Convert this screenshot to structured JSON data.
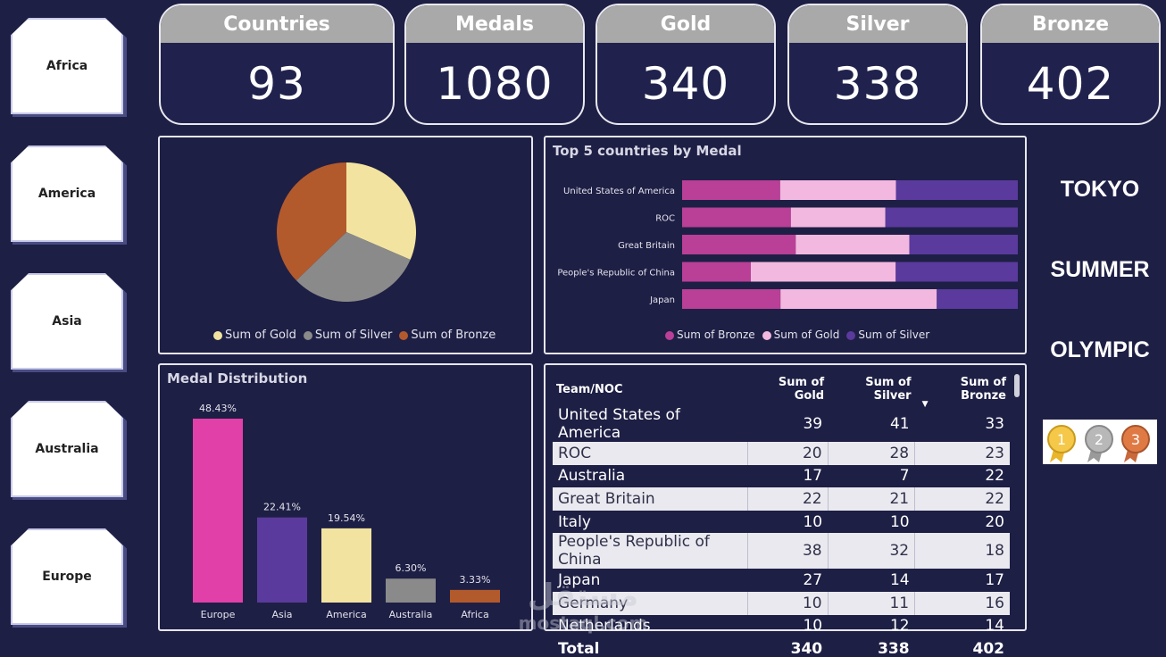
{
  "regions": [
    "Africa",
    "America",
    "Asia",
    "Australia",
    "Europe"
  ],
  "kpis": [
    {
      "label": "Countries",
      "value": "93"
    },
    {
      "label": "Medals",
      "value": "1080"
    },
    {
      "label": "Gold",
      "value": "340"
    },
    {
      "label": "Silver",
      "value": "338"
    },
    {
      "label": "Bronze",
      "value": "402"
    }
  ],
  "pie": {
    "legend": [
      "Sum of Gold",
      "Sum of Silver",
      "Sum of Bronze"
    ],
    "colors": [
      "#f2e4a0",
      "#8a8a8a",
      "#b35a2d"
    ],
    "values": [
      340,
      338,
      402
    ]
  },
  "top5": {
    "title": "Top 5 countries by Medal",
    "legend": [
      "Sum of Bronze",
      "Sum of Gold",
      "Sum of Silver"
    ],
    "colors": [
      "#b93f97",
      "#f3b8e0",
      "#5a3a9c"
    ],
    "countries": [
      "United States of America",
      "ROC",
      "Great Britain",
      "People's Republic of China",
      "Japan"
    ],
    "bronze": [
      33,
      23,
      22,
      18,
      17
    ],
    "gold": [
      39,
      20,
      22,
      38,
      27
    ],
    "silver": [
      41,
      28,
      21,
      32,
      14
    ]
  },
  "distribution": {
    "title": "Medal Distribution",
    "categories": [
      "Europe",
      "Asia",
      "America",
      "Australia",
      "Africa"
    ],
    "values": [
      48.43,
      22.41,
      19.54,
      6.3,
      3.33
    ],
    "labels": [
      "48.43%",
      "22.41%",
      "19.54%",
      "6.30%",
      "3.33%"
    ],
    "colors": [
      "#e040a8",
      "#5a3a9c",
      "#f2e4a0",
      "#8a8a8a",
      "#b35a2d"
    ]
  },
  "table": {
    "headers": [
      "Team/NOC",
      "Sum of Gold",
      "Sum of Silver",
      "Sum of Bronze"
    ],
    "rows": [
      [
        "United States of America",
        "39",
        "41",
        "33"
      ],
      [
        "ROC",
        "20",
        "28",
        "23"
      ],
      [
        "Australia",
        "17",
        "7",
        "22"
      ],
      [
        "Great Britain",
        "22",
        "21",
        "22"
      ],
      [
        "Italy",
        "10",
        "10",
        "20"
      ],
      [
        "People's Republic of China",
        "38",
        "32",
        "18"
      ],
      [
        "Japan",
        "27",
        "14",
        "17"
      ],
      [
        "Germany",
        "10",
        "11",
        "16"
      ],
      [
        "Netherlands",
        "10",
        "12",
        "14"
      ]
    ],
    "total": [
      "Total",
      "340",
      "338",
      "402"
    ]
  },
  "side_words": [
    "TOKYO",
    "SUMMER",
    "OLYMPIC"
  ],
  "medal_ribbon_numbers": [
    "1",
    "2",
    "3"
  ],
  "watermark": {
    "arabic": "مستقل",
    "latin": "mostaql.com"
  },
  "chart_data": [
    {
      "type": "pie",
      "categories": [
        "Sum of Gold",
        "Sum of Silver",
        "Sum of Bronze"
      ],
      "values": [
        340,
        338,
        402
      ]
    },
    {
      "type": "bar",
      "title": "Top 5 countries by Medal",
      "categories": [
        "United States of America",
        "ROC",
        "Great Britain",
        "People's Republic of China",
        "Japan"
      ],
      "series": [
        {
          "name": "Sum of Bronze",
          "values": [
            33,
            23,
            22,
            18,
            17
          ]
        },
        {
          "name": "Sum of Gold",
          "values": [
            39,
            20,
            22,
            38,
            27
          ]
        },
        {
          "name": "Sum of Silver",
          "values": [
            41,
            28,
            21,
            32,
            14
          ]
        }
      ]
    },
    {
      "type": "bar",
      "title": "Medal Distribution",
      "categories": [
        "Europe",
        "Asia",
        "America",
        "Australia",
        "Africa"
      ],
      "values": [
        48.43,
        22.41,
        19.54,
        6.3,
        3.33
      ]
    }
  ]
}
